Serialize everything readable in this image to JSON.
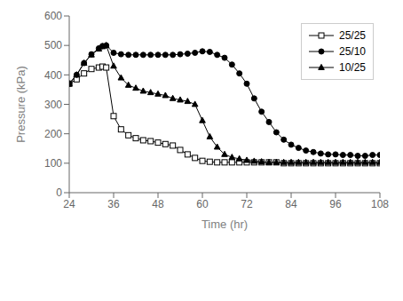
{
  "chart_data": {
    "type": "line",
    "xlabel": "Time (hr)",
    "ylabel": "Pressure (kPa)",
    "xlim": [
      24,
      108
    ],
    "ylim": [
      0,
      600
    ],
    "xticks": [
      24,
      36,
      48,
      60,
      72,
      84,
      96,
      108
    ],
    "yticks": [
      0,
      100,
      200,
      300,
      400,
      500,
      600
    ],
    "legend": "upper right",
    "x": [
      24,
      26,
      28,
      30,
      32,
      33,
      34,
      36,
      38,
      40,
      42,
      44,
      46,
      48,
      50,
      52,
      54,
      56,
      58,
      60,
      62,
      64,
      66,
      68,
      70,
      72,
      74,
      76,
      78,
      80,
      82,
      84,
      86,
      88,
      90,
      92,
      94,
      96,
      98,
      100,
      102,
      104,
      106,
      108
    ],
    "series": [
      {
        "name": "25/25",
        "color": "black",
        "marker": "square-open",
        "values": [
          370,
          385,
          405,
          420,
          425,
          428,
          425,
          260,
          215,
          195,
          185,
          178,
          175,
          170,
          165,
          160,
          145,
          130,
          118,
          108,
          105,
          103,
          103,
          103,
          103,
          103,
          103,
          103,
          103,
          103,
          100,
          100,
          100,
          100,
          100,
          100,
          100,
          100,
          100,
          100,
          100,
          100,
          100,
          100
        ]
      },
      {
        "name": "25/10",
        "color": "black",
        "marker": "circle",
        "values": [
          370,
          400,
          440,
          470,
          490,
          498,
          500,
          475,
          470,
          468,
          468,
          468,
          468,
          468,
          468,
          468,
          470,
          472,
          475,
          480,
          478,
          468,
          458,
          435,
          405,
          370,
          320,
          275,
          240,
          205,
          180,
          163,
          152,
          143,
          138,
          133,
          130,
          130,
          128,
          128,
          125,
          125,
          128,
          128
        ]
      },
      {
        "name": "10/25",
        "color": "black",
        "marker": "triangle",
        "values": [
          370,
          400,
          440,
          468,
          488,
          496,
          500,
          430,
          390,
          365,
          355,
          345,
          340,
          335,
          330,
          320,
          315,
          310,
          300,
          245,
          190,
          155,
          130,
          120,
          115,
          110,
          107,
          105,
          103,
          103,
          103,
          103,
          103,
          103,
          103,
          103,
          103,
          103,
          103,
          103,
          103,
          103,
          103,
          103
        ]
      }
    ]
  }
}
